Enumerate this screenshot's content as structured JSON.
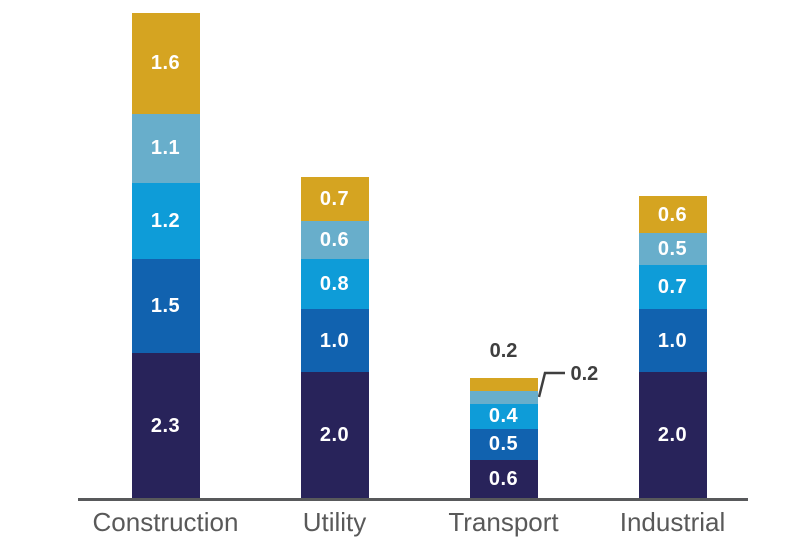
{
  "chart_data": {
    "type": "bar",
    "variant": "stacked-vertical",
    "title": "",
    "xlabel": "",
    "ylabel": "",
    "grid": false,
    "legend": null,
    "categories": [
      "Construction",
      "Utility",
      "Transport",
      "Industrial"
    ],
    "series": [
      {
        "name": "layer-1-bottom",
        "color": "#28235A",
        "values": [
          2.3,
          2.0,
          0.6,
          2.0
        ]
      },
      {
        "name": "layer-2",
        "color": "#1162AF",
        "values": [
          1.5,
          1.0,
          0.5,
          1.0
        ]
      },
      {
        "name": "layer-3",
        "color": "#0E9CD8",
        "values": [
          1.2,
          0.8,
          0.4,
          0.7
        ]
      },
      {
        "name": "layer-4",
        "color": "#68AECB",
        "values": [
          1.1,
          0.6,
          0.2,
          0.5
        ]
      },
      {
        "name": "layer-5-top",
        "color": "#D5A421",
        "values": [
          1.6,
          0.7,
          0.2,
          0.6
        ]
      }
    ],
    "totals": [
      7.7,
      5.1,
      1.9,
      4.8
    ],
    "value_labels": {
      "inside_color": "#FFFFFF",
      "outside_color": "#3F3F3F",
      "format": "one-decimal"
    },
    "annotations": [
      {
        "category_index": 2,
        "series_index": 4,
        "text": "0.2",
        "placement": "above-bar"
      },
      {
        "category_index": 2,
        "series_index": 3,
        "text": "0.2",
        "placement": "callout-right"
      }
    ],
    "axis_line_color": "#58595B",
    "category_label_color": "#595959"
  }
}
